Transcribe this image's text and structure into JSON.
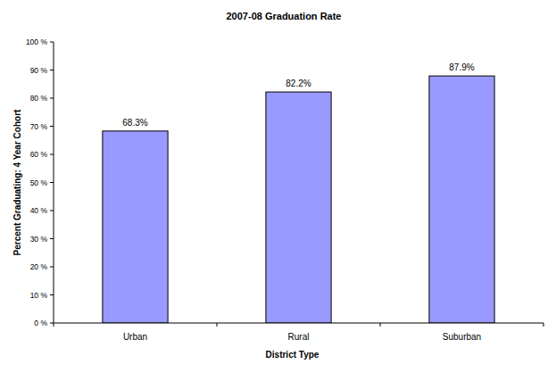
{
  "chart_data": {
    "type": "bar",
    "title": "2007-08 Graduation Rate",
    "x_label": "District Type",
    "y_label": "Percent Graduating: 4 Year Cohort",
    "categories": [
      "Urban",
      "Rural",
      "Suburban"
    ],
    "values": [
      68.3,
      82.2,
      87.9
    ],
    "value_labels": [
      "68.3%",
      "82.2%",
      "87.9%"
    ],
    "color": "#9999ff",
    "ylim": [
      0,
      100
    ],
    "yticks": [
      {
        "value": 0,
        "label": "0 %"
      },
      {
        "value": 10,
        "label": "10 %"
      },
      {
        "value": 20,
        "label": "20 %"
      },
      {
        "value": 30,
        "label": "30 %"
      },
      {
        "value": 40,
        "label": "40 %"
      },
      {
        "value": 50,
        "label": "50 %"
      },
      {
        "value": 60,
        "label": "60 %"
      },
      {
        "value": 70,
        "label": "70 %"
      },
      {
        "value": 80,
        "label": "80 %"
      },
      {
        "value": 90,
        "label": "90 %"
      },
      {
        "value": 100,
        "label": "100 %"
      }
    ],
    "grid": false,
    "data_labels": true
  }
}
